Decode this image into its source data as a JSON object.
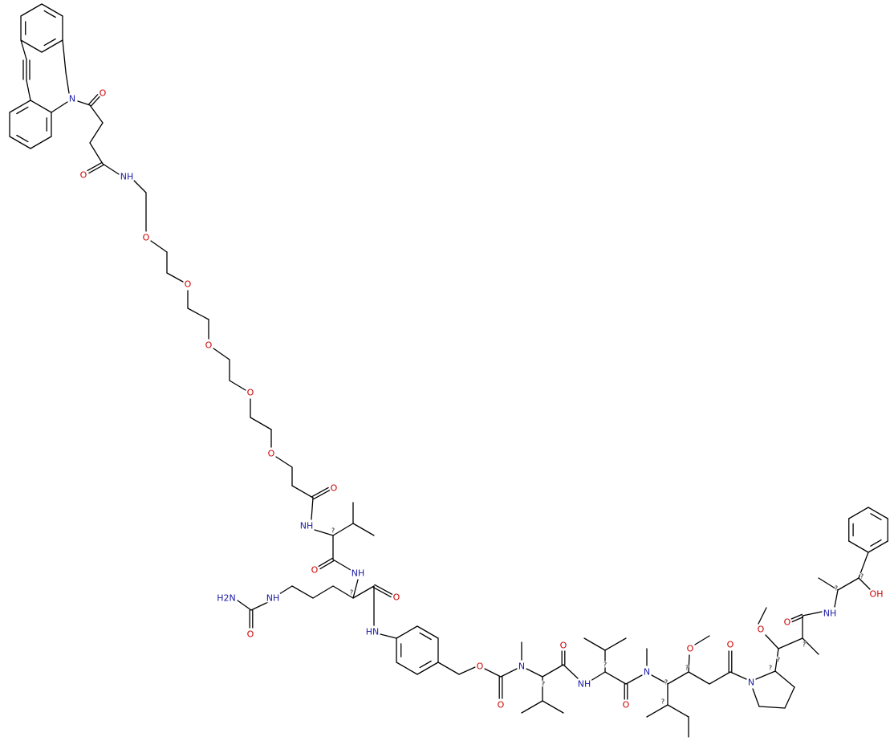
{
  "atoms": [
    "N",
    "O",
    "O",
    "NH",
    "O",
    "O",
    "O",
    "O",
    "O",
    "O",
    "NH",
    "?",
    "O",
    "NH",
    "?",
    "O",
    "H2N",
    "NH",
    "O",
    "HN",
    "O",
    "O",
    "N",
    "?",
    "O",
    "NH",
    "?",
    "O",
    "N",
    "?",
    "?",
    "O",
    "?",
    "O",
    "N",
    "?",
    "O",
    "?",
    "?",
    "O",
    "NH",
    "?",
    "?",
    "OH"
  ]
}
